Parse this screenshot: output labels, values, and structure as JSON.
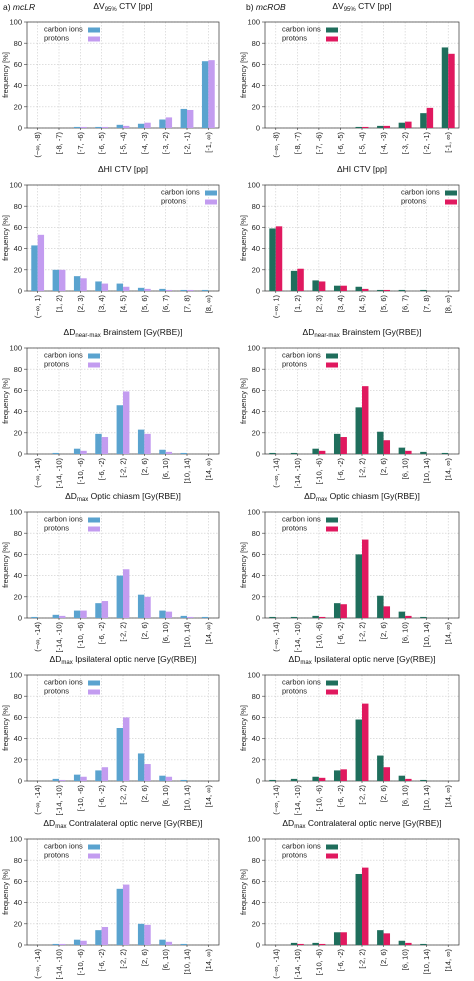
{
  "panel_labels": {
    "left": "a) mcLR",
    "right": "b) mcROB"
  },
  "colors": {
    "left": {
      "carbon": "#5aa3cf",
      "protons": "#c39cf0"
    },
    "right": {
      "carbon": "#1f6e5c",
      "protons": "#e0195f"
    }
  },
  "legend": {
    "carbon": "carbon ions",
    "protons": "protons"
  },
  "ylabel": "frequency [%]",
  "yticks": [
    "0",
    "20",
    "40",
    "60",
    "80",
    "100"
  ],
  "categories": {
    "ctv": [
      "(−∞, -8)",
      "[-8, -7)",
      "[-7, -6)",
      "[-6, -5)",
      "[-5, -4)",
      "[-4, -3)",
      "[-3, -2)",
      "[-2, -1)",
      "[-1, ∞)"
    ],
    "hi": [
      "(−∞, 1)",
      "[1, 2)",
      "[2, 3)",
      "[3, 4)",
      "[4, 5)",
      "[5, 6)",
      "[6, 7)",
      "[7, 8)",
      "[8, ∞)"
    ],
    "dose": [
      "(−∞, -14)",
      "[-14, -10)",
      "[-10, -6)",
      "[-6, -2)",
      "[-2, 2)",
      "[2, 6)",
      "[6, 10)",
      "[10, 14)",
      "[14, ∞)"
    ]
  },
  "chart_data": [
    {
      "type": "bar",
      "panel": "a",
      "title": "ΔV95% CTV [pp]",
      "cat": "ctv",
      "ylim": [
        0,
        100
      ],
      "legend_position": "top-left",
      "series": [
        {
          "name": "carbon ions",
          "values": [
            0,
            0,
            1,
            1,
            3,
            4,
            8,
            18,
            63
          ]
        },
        {
          "name": "protons",
          "values": [
            0,
            0,
            1,
            1,
            2,
            5,
            10,
            17,
            64
          ]
        }
      ]
    },
    {
      "type": "bar",
      "panel": "b",
      "title": "ΔV95% CTV [pp]",
      "cat": "ctv",
      "ylim": [
        0,
        100
      ],
      "legend_position": "top-left",
      "series": [
        {
          "name": "carbon ions",
          "values": [
            0,
            0,
            0,
            0,
            1,
            2,
            5,
            14,
            76
          ]
        },
        {
          "name": "protons",
          "values": [
            0,
            0,
            0,
            0,
            1,
            2,
            6,
            19,
            70
          ]
        }
      ]
    },
    {
      "type": "bar",
      "panel": "a",
      "title": "ΔHI CTV [pp]",
      "cat": "hi",
      "ylim": [
        0,
        100
      ],
      "legend_position": "top-right",
      "series": [
        {
          "name": "carbon ions",
          "values": [
            43,
            20,
            14,
            9,
            7,
            3,
            2,
            1,
            1
          ]
        },
        {
          "name": "protons",
          "values": [
            53,
            20,
            12,
            7,
            4,
            2,
            1,
            1,
            0
          ]
        }
      ]
    },
    {
      "type": "bar",
      "panel": "b",
      "title": "ΔHI CTV [pp]",
      "cat": "hi",
      "ylim": [
        0,
        100
      ],
      "legend_position": "top-right",
      "series": [
        {
          "name": "carbon ions",
          "values": [
            59,
            19,
            10,
            5,
            4,
            1,
            1,
            1,
            0
          ]
        },
        {
          "name": "protons",
          "values": [
            61,
            21,
            9,
            5,
            2,
            1,
            0,
            0,
            0
          ]
        }
      ]
    },
    {
      "type": "bar",
      "panel": "a",
      "title": "ΔDnear-max Brainstem [Gy(RBE)]",
      "cat": "dose",
      "ylim": [
        0,
        100
      ],
      "legend_position": "top-left",
      "series": [
        {
          "name": "carbon ions",
          "values": [
            0,
            1,
            5,
            19,
            46,
            23,
            4,
            1,
            0
          ]
        },
        {
          "name": "protons",
          "values": [
            0,
            0,
            3,
            16,
            59,
            19,
            2,
            0,
            0
          ]
        }
      ]
    },
    {
      "type": "bar",
      "panel": "b",
      "title": "ΔDnear-max Brainstem [Gy(RBE)]",
      "cat": "dose",
      "ylim": [
        0,
        100
      ],
      "legend_position": "top-left",
      "series": [
        {
          "name": "carbon ions",
          "values": [
            1,
            1,
            5,
            19,
            44,
            21,
            6,
            2,
            1
          ]
        },
        {
          "name": "protons",
          "values": [
            0,
            0,
            3,
            16,
            64,
            13,
            3,
            0,
            0
          ]
        }
      ]
    },
    {
      "type": "bar",
      "panel": "a",
      "title": "ΔDmax Optic chiasm [Gy(RBE)]",
      "cat": "dose",
      "ylim": [
        0,
        100
      ],
      "legend_position": "top-left",
      "series": [
        {
          "name": "carbon ions",
          "values": [
            1,
            3,
            7,
            14,
            40,
            22,
            7,
            2,
            1
          ]
        },
        {
          "name": "protons",
          "values": [
            0,
            2,
            7,
            16,
            46,
            20,
            6,
            1,
            0
          ]
        }
      ]
    },
    {
      "type": "bar",
      "panel": "b",
      "title": "ΔDmax Optic chiasm [Gy(RBE)]",
      "cat": "dose",
      "ylim": [
        0,
        100
      ],
      "legend_position": "top-left",
      "series": [
        {
          "name": "carbon ions",
          "values": [
            1,
            1,
            2,
            14,
            60,
            21,
            6,
            1,
            0
          ]
        },
        {
          "name": "protons",
          "values": [
            0,
            0,
            1,
            13,
            74,
            11,
            2,
            0,
            0
          ]
        }
      ]
    },
    {
      "type": "bar",
      "panel": "a",
      "title": "ΔDmax Ipsilateral optic nerve [Gy(RBE)]",
      "cat": "dose",
      "ylim": [
        0,
        100
      ],
      "legend_position": "top-left",
      "series": [
        {
          "name": "carbon ions",
          "values": [
            0,
            2,
            6,
            10,
            50,
            26,
            5,
            1,
            0
          ]
        },
        {
          "name": "protons",
          "values": [
            0,
            1,
            4,
            13,
            60,
            16,
            4,
            0,
            0
          ]
        }
      ]
    },
    {
      "type": "bar",
      "panel": "b",
      "title": "ΔDmax Ipsilateral optic nerve [Gy(RBE)]",
      "cat": "dose",
      "ylim": [
        0,
        100
      ],
      "legend_position": "top-left",
      "series": [
        {
          "name": "carbon ions",
          "values": [
            1,
            2,
            4,
            10,
            58,
            24,
            5,
            1,
            0
          ]
        },
        {
          "name": "protons",
          "values": [
            0,
            0,
            3,
            11,
            73,
            13,
            2,
            0,
            0
          ]
        }
      ]
    },
    {
      "type": "bar",
      "panel": "a",
      "title": "ΔDmax Contralateral optic nerve [Gy(RBE)]",
      "cat": "dose",
      "ylim": [
        0,
        100
      ],
      "legend_position": "top-left",
      "series": [
        {
          "name": "carbon ions",
          "values": [
            0,
            1,
            5,
            14,
            53,
            20,
            5,
            1,
            0
          ]
        },
        {
          "name": "protons",
          "values": [
            0,
            1,
            4,
            17,
            57,
            19,
            3,
            0,
            0
          ]
        }
      ]
    },
    {
      "type": "bar",
      "panel": "b",
      "title": "ΔDmax Contralateral optic nerve [Gy(RBE)]",
      "cat": "dose",
      "ylim": [
        0,
        100
      ],
      "legend_position": "top-left",
      "series": [
        {
          "name": "carbon ions",
          "values": [
            0,
            2,
            2,
            12,
            67,
            14,
            4,
            1,
            0
          ]
        },
        {
          "name": "protons",
          "values": [
            0,
            1,
            1,
            12,
            73,
            11,
            2,
            0,
            0
          ]
        }
      ]
    }
  ]
}
